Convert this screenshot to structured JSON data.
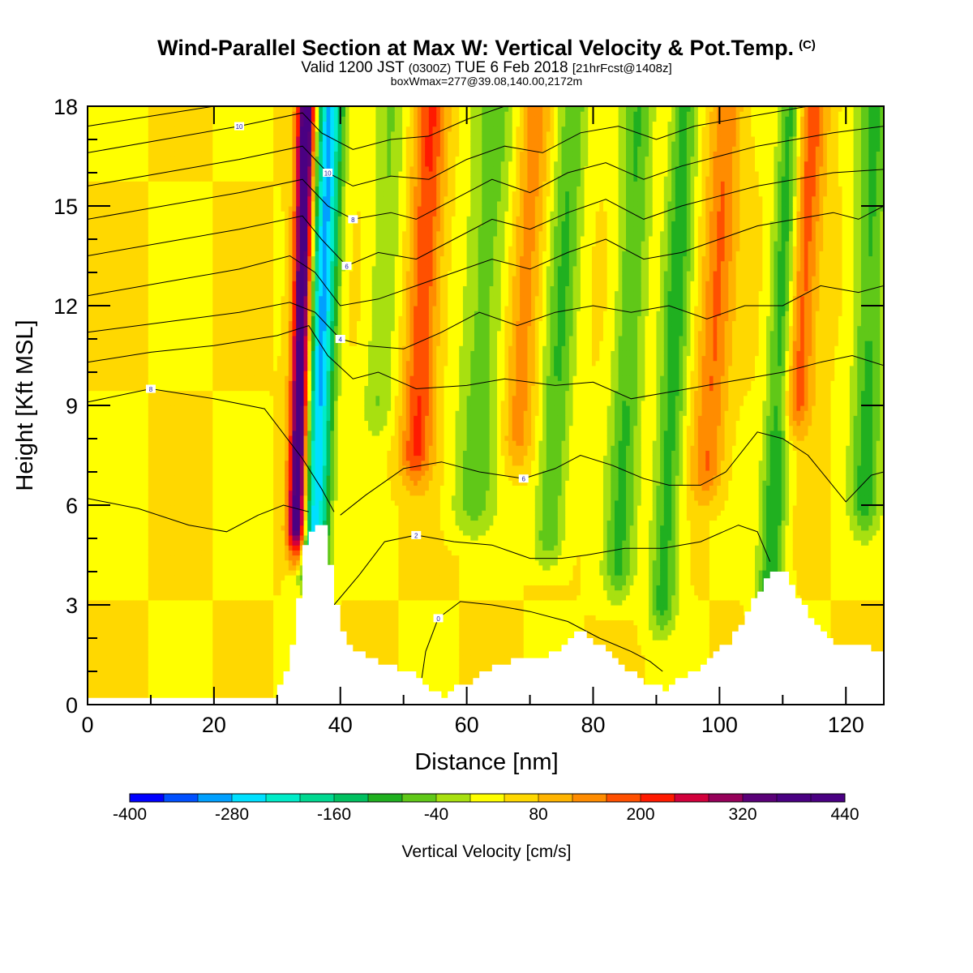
{
  "header": {
    "title_main": "Wind-Parallel Section at Max W: Vertical Velocity & Pot.Temp.",
    "title_units": "(C)",
    "subtitle_a": "Valid 1200 JST",
    "subtitle_b": "(0300Z)",
    "subtitle_c": "TUE 6 Feb 2018",
    "subtitle_d": "[21hrFcst@1408z]",
    "subtitle_line3": "boxWmax=277@39.08,140.00,2172m"
  },
  "chart_data": {
    "type": "heatmap",
    "title": "Wind-Parallel Section at Max W: Vertical Velocity & Pot.Temp. (C)",
    "xlabel": "Distance [nm]",
    "ylabel": "Height [Kft MSL]",
    "xlim": [
      0,
      126
    ],
    "ylim": [
      0,
      18
    ],
    "x_ticks": [
      "0",
      "20",
      "40",
      "60",
      "80",
      "100",
      "120"
    ],
    "y_ticks": [
      "0",
      "3",
      "6",
      "9",
      "12",
      "15",
      "18"
    ],
    "grid": false,
    "colorbar": {
      "label": "Vertical Velocity [cm/s]",
      "placement": "bottom",
      "min": -400,
      "max": 440,
      "step": 40,
      "tick_labels": [
        "-400",
        "-280",
        "-160",
        "-40",
        "80",
        "200",
        "320",
        "440"
      ],
      "colors": [
        "#0000ff",
        "#0050ff",
        "#00a0ff",
        "#00e0ff",
        "#00ecc8",
        "#00d890",
        "#00c060",
        "#20b020",
        "#60c818",
        "#a8e010",
        "#ffff00",
        "#ffd800",
        "#ffb400",
        "#ff8c00",
        "#ff5000",
        "#ff1a00",
        "#d2003c",
        "#96005a",
        "#5a0078",
        "#4a0082",
        "#4a0082"
      ]
    },
    "terrain_kft": [
      {
        "x": 0,
        "h": 0.3
      },
      {
        "x": 29,
        "h": 0.3
      },
      {
        "x": 30,
        "h": 0.6
      },
      {
        "x": 31,
        "h": 1.0
      },
      {
        "x": 32,
        "h": 1.8
      },
      {
        "x": 33,
        "h": 3.2
      },
      {
        "x": 34,
        "h": 4.8
      },
      {
        "x": 35.5,
        "h": 5.4
      },
      {
        "x": 37,
        "h": 5.4
      },
      {
        "x": 38,
        "h": 4.2
      },
      {
        "x": 39,
        "h": 3.0
      },
      {
        "x": 40,
        "h": 2.1
      },
      {
        "x": 42,
        "h": 1.6
      },
      {
        "x": 45,
        "h": 1.3
      },
      {
        "x": 48,
        "h": 1.1
      },
      {
        "x": 51,
        "h": 0.9
      },
      {
        "x": 54,
        "h": 0.4
      },
      {
        "x": 56,
        "h": 0.3
      },
      {
        "x": 59,
        "h": 0.6
      },
      {
        "x": 62,
        "h": 0.9
      },
      {
        "x": 65,
        "h": 1.2
      },
      {
        "x": 68,
        "h": 1.4
      },
      {
        "x": 71,
        "h": 1.4
      },
      {
        "x": 74,
        "h": 1.6
      },
      {
        "x": 76,
        "h": 2.0
      },
      {
        "x": 78,
        "h": 2.2
      },
      {
        "x": 80,
        "h": 1.9
      },
      {
        "x": 83,
        "h": 1.4
      },
      {
        "x": 86,
        "h": 0.9
      },
      {
        "x": 89,
        "h": 0.6
      },
      {
        "x": 91,
        "h": 0.4
      },
      {
        "x": 93,
        "h": 0.8
      },
      {
        "x": 96,
        "h": 1.0
      },
      {
        "x": 99,
        "h": 1.5
      },
      {
        "x": 102,
        "h": 2.1
      },
      {
        "x": 105,
        "h": 3.1
      },
      {
        "x": 107,
        "h": 3.7
      },
      {
        "x": 108,
        "h": 4.1
      },
      {
        "x": 110,
        "h": 4.1
      },
      {
        "x": 112,
        "h": 3.3
      },
      {
        "x": 114,
        "h": 2.6
      },
      {
        "x": 116,
        "h": 2.3
      },
      {
        "x": 118,
        "h": 1.9
      },
      {
        "x": 122,
        "h": 1.9
      },
      {
        "x": 124,
        "h": 1.6
      },
      {
        "x": 126,
        "h": 1.6
      }
    ],
    "velocity_bands": [
      {
        "x": 35.8,
        "ybot": 4.5,
        "w": 2.2,
        "tilt": 0.16,
        "amp": -330,
        "name": "downdraft-1"
      },
      {
        "x": 33.2,
        "ybot": 5.3,
        "w": 1.5,
        "tilt": 0.1,
        "amp": 400,
        "name": "updraft-1"
      },
      {
        "x": 52,
        "ybot": 7.5,
        "w": 2.5,
        "tilt": 0.2,
        "amp": 160,
        "name": "updraft-2"
      },
      {
        "x": 46,
        "ybot": 9.0,
        "w": 2.5,
        "tilt": 0.2,
        "amp": -80,
        "name": "downdraft-2"
      },
      {
        "x": 61,
        "ybot": 6.0,
        "w": 3.5,
        "tilt": 0.25,
        "amp": -100,
        "name": "downdraft-3"
      },
      {
        "x": 73,
        "ybot": 5.0,
        "w": 2.5,
        "tilt": 0.25,
        "amp": -120,
        "name": "downdraft-4"
      },
      {
        "x": 68,
        "ybot": 8.0,
        "w": 2.5,
        "tilt": 0.25,
        "amp": 100,
        "name": "updraft-3"
      },
      {
        "x": 84,
        "ybot": 4.0,
        "w": 2.5,
        "tilt": 0.2,
        "amp": -120,
        "name": "downdraft-5"
      },
      {
        "x": 91,
        "ybot": 3.0,
        "w": 2.2,
        "tilt": 0.2,
        "amp": -140,
        "name": "downdraft-6"
      },
      {
        "x": 98,
        "ybot": 7.0,
        "w": 2.5,
        "tilt": 0.25,
        "amp": 120,
        "name": "updraft-4"
      },
      {
        "x": 108,
        "ybot": 3.2,
        "w": 2.0,
        "tilt": 0.2,
        "amp": -160,
        "name": "downdraft-7"
      },
      {
        "x": 112,
        "ybot": 9.0,
        "w": 2.5,
        "tilt": 0.25,
        "amp": 150,
        "name": "updraft-5"
      },
      {
        "x": 123,
        "ybot": 6.0,
        "w": 2.5,
        "tilt": 0.1,
        "amp": -130,
        "name": "downdraft-8"
      }
    ],
    "pot_temp_contours": [
      {
        "label": "0",
        "points": [
          [
            52.5,
            0.3
          ],
          [
            53.5,
            1.6
          ],
          [
            55.5,
            2.6
          ],
          [
            59,
            3.1
          ],
          [
            64,
            3.0
          ],
          [
            70,
            2.8
          ],
          [
            76,
            2.5
          ],
          [
            81,
            2.0
          ],
          [
            86,
            1.6
          ],
          [
            89,
            1.3
          ],
          [
            91,
            1.0
          ]
        ]
      },
      {
        "label": "2",
        "points": [
          [
            39,
            3.0
          ],
          [
            43,
            3.9
          ],
          [
            47,
            4.9
          ],
          [
            52,
            5.1
          ],
          [
            58,
            4.9
          ],
          [
            64,
            4.8
          ],
          [
            70,
            4.4
          ],
          [
            75,
            4.4
          ],
          [
            79,
            4.5
          ],
          [
            85,
            4.7
          ],
          [
            91,
            4.7
          ],
          [
            97,
            4.9
          ],
          [
            103,
            5.4
          ],
          [
            106,
            5.2
          ],
          [
            108,
            4.3
          ]
        ]
      },
      {
        "label": "",
        "points": [
          [
            0,
            6.2
          ],
          [
            8,
            5.9
          ],
          [
            16,
            5.4
          ],
          [
            22,
            5.2
          ],
          [
            27,
            5.7
          ],
          [
            31,
            6.0
          ],
          [
            35,
            5.8
          ]
        ]
      },
      {
        "label": "6",
        "points": [
          [
            40,
            5.7
          ],
          [
            44,
            6.3
          ],
          [
            50,
            7.1
          ],
          [
            56,
            7.3
          ],
          [
            62,
            7.0
          ],
          [
            69,
            6.8
          ],
          [
            74,
            7.1
          ],
          [
            78,
            7.5
          ],
          [
            83,
            7.2
          ],
          [
            88,
            6.8
          ],
          [
            92,
            6.6
          ],
          [
            97,
            6.6
          ],
          [
            101,
            7.0
          ],
          [
            106,
            8.2
          ],
          [
            110,
            8.0
          ],
          [
            114,
            7.5
          ],
          [
            117,
            6.8
          ],
          [
            120,
            6.1
          ],
          [
            124,
            6.9
          ],
          [
            126,
            7.0
          ]
        ]
      },
      {
        "label": "8",
        "points": [
          [
            0,
            9.1
          ],
          [
            10,
            9.5
          ],
          [
            20,
            9.2
          ],
          [
            28,
            8.9
          ],
          [
            34,
            7.4
          ],
          [
            37,
            6.5
          ],
          [
            39,
            5.8
          ]
        ]
      },
      {
        "label": "",
        "points": [
          [
            0,
            10.3
          ],
          [
            10,
            10.6
          ],
          [
            20,
            10.8
          ],
          [
            30,
            11.1
          ],
          [
            35,
            11.4
          ],
          [
            38,
            10.5
          ],
          [
            42,
            9.8
          ],
          [
            46,
            10.0
          ],
          [
            52,
            9.5
          ],
          [
            60,
            9.6
          ],
          [
            66,
            9.8
          ],
          [
            74,
            9.6
          ],
          [
            80,
            9.7
          ],
          [
            86,
            9.2
          ],
          [
            92,
            9.4
          ],
          [
            98,
            9.6
          ],
          [
            104,
            9.8
          ],
          [
            110,
            10.0
          ],
          [
            116,
            10.3
          ],
          [
            121,
            10.5
          ],
          [
            126,
            10.2
          ]
        ]
      },
      {
        "label": "4",
        "points": [
          [
            0,
            11.2
          ],
          [
            12,
            11.5
          ],
          [
            24,
            11.8
          ],
          [
            32,
            12.1
          ],
          [
            36,
            11.8
          ],
          [
            40,
            11.0
          ],
          [
            44,
            10.8
          ],
          [
            50,
            10.7
          ],
          [
            56,
            11.2
          ],
          [
            62,
            11.8
          ],
          [
            68,
            11.4
          ],
          [
            74,
            11.8
          ],
          [
            80,
            12.0
          ],
          [
            86,
            11.8
          ],
          [
            92,
            12.0
          ],
          [
            98,
            11.6
          ],
          [
            104,
            12.0
          ],
          [
            110,
            12.0
          ],
          [
            116,
            12.6
          ],
          [
            122,
            12.4
          ],
          [
            126,
            12.6
          ]
        ]
      },
      {
        "label": "",
        "points": [
          [
            0,
            12.3
          ],
          [
            12,
            12.7
          ],
          [
            24,
            13.1
          ],
          [
            32,
            13.5
          ],
          [
            36,
            13.0
          ],
          [
            40,
            12.0
          ],
          [
            46,
            12.2
          ],
          [
            52,
            12.6
          ],
          [
            58,
            13.0
          ],
          [
            64,
            13.4
          ],
          [
            70,
            13.1
          ],
          [
            76,
            13.6
          ],
          [
            82,
            14.0
          ],
          [
            88,
            13.4
          ],
          [
            94,
            13.6
          ],
          [
            100,
            14.0
          ],
          [
            106,
            14.4
          ],
          [
            112,
            14.6
          ],
          [
            118,
            14.8
          ],
          [
            122,
            14.6
          ],
          [
            126,
            15.0
          ]
        ]
      },
      {
        "label": "6",
        "points": [
          [
            0,
            13.5
          ],
          [
            12,
            13.9
          ],
          [
            24,
            14.3
          ],
          [
            34,
            14.7
          ],
          [
            37,
            14.0
          ],
          [
            41,
            13.2
          ],
          [
            46,
            13.6
          ],
          [
            52,
            13.4
          ],
          [
            58,
            14.0
          ],
          [
            64,
            14.6
          ],
          [
            70,
            14.3
          ],
          [
            76,
            14.8
          ],
          [
            82,
            15.2
          ],
          [
            88,
            14.6
          ],
          [
            94,
            15.0
          ],
          [
            100,
            15.3
          ],
          [
            106,
            15.6
          ],
          [
            112,
            15.8
          ],
          [
            118,
            16.0
          ],
          [
            126,
            16.1
          ]
        ]
      },
      {
        "label": "8",
        "points": [
          [
            0,
            14.6
          ],
          [
            12,
            15.0
          ],
          [
            24,
            15.4
          ],
          [
            34,
            15.8
          ],
          [
            38,
            15.0
          ],
          [
            42,
            14.6
          ],
          [
            48,
            14.8
          ],
          [
            52,
            14.6
          ],
          [
            58,
            15.2
          ],
          [
            64,
            15.8
          ],
          [
            70,
            15.4
          ],
          [
            76,
            16.0
          ],
          [
            82,
            16.3
          ],
          [
            88,
            15.8
          ],
          [
            94,
            16.2
          ],
          [
            100,
            16.5
          ],
          [
            106,
            16.8
          ],
          [
            112,
            17.0
          ],
          [
            118,
            17.2
          ],
          [
            126,
            17.4
          ]
        ]
      },
      {
        "label": "10",
        "points": [
          [
            0,
            15.6
          ],
          [
            12,
            16.0
          ],
          [
            24,
            16.4
          ],
          [
            34,
            16.8
          ],
          [
            38,
            16.0
          ],
          [
            42,
            15.6
          ],
          [
            48,
            15.9
          ],
          [
            54,
            15.8
          ],
          [
            60,
            16.4
          ],
          [
            66,
            16.8
          ],
          [
            72,
            16.6
          ],
          [
            78,
            17.2
          ],
          [
            84,
            17.4
          ],
          [
            90,
            17.0
          ],
          [
            96,
            17.4
          ],
          [
            102,
            17.6
          ],
          [
            108,
            17.8
          ],
          [
            114,
            18.0
          ]
        ]
      },
      {
        "label": "10",
        "points": [
          [
            0,
            16.6
          ],
          [
            12,
            17.0
          ],
          [
            24,
            17.4
          ],
          [
            34,
            17.8
          ],
          [
            37,
            17.2
          ],
          [
            42,
            16.7
          ],
          [
            48,
            17.0
          ],
          [
            54,
            17.1
          ],
          [
            60,
            17.6
          ],
          [
            66,
            18.0
          ]
        ]
      },
      {
        "label": "",
        "points": [
          [
            0,
            17.4
          ],
          [
            10,
            17.7
          ],
          [
            20,
            18.0
          ]
        ]
      }
    ]
  }
}
